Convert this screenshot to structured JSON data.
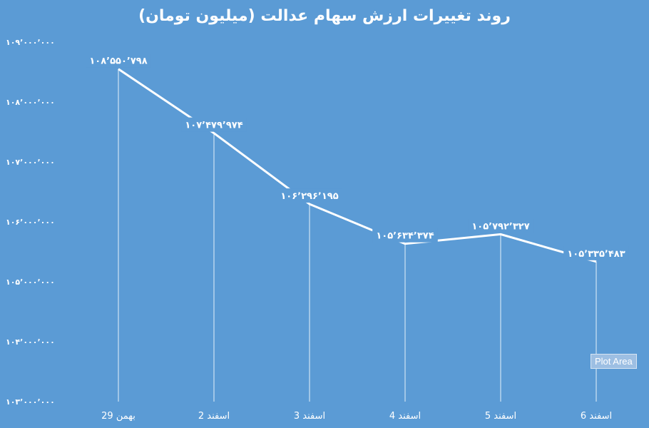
{
  "chart_data": {
    "type": "line",
    "title": "روند تغییرات ارزش سهام عدالت (میلیون تومان)",
    "categories": [
      "29 بهمن",
      "2 اسفند",
      "3 اسفند",
      "4 اسفند",
      "5 اسفند",
      "6 اسفند"
    ],
    "values": [
      108550798,
      107479974,
      106296195,
      105634374,
      105792327,
      105335483
    ],
    "data_labels": [
      "۱۰۸٬۵۵۰٬۷۹۸",
      "۱۰۷٬۴۷۹٬۹۷۴",
      "۱۰۶٬۲۹۶٬۱۹۵",
      "۱۰۵٬۶۳۴٬۳۷۴",
      "۱۰۵٬۷۹۲٬۳۲۷",
      "۱۰۵٬۳۳۵٬۴۸۳"
    ],
    "ylim": [
      103000000,
      109000000
    ],
    "yticks": [
      109000000,
      108000000,
      107000000,
      106000000,
      105000000,
      104000000,
      103000000
    ],
    "ytick_labels": [
      "۱۰۹٬۰۰۰٬۰۰۰",
      "۱۰۸٬۰۰۰٬۰۰۰",
      "۱۰۷٬۰۰۰٬۰۰۰",
      "۱۰۶٬۰۰۰٬۰۰۰",
      "۱۰۵٬۰۰۰٬۰۰۰",
      "۱۰۴٬۰۰۰٬۰۰۰",
      "۱۰۳٬۰۰۰٬۰۰۰"
    ],
    "drop_lines": true,
    "grid": false,
    "colors": {
      "background": "#5b9bd5",
      "line": "#ffffff"
    }
  },
  "tooltip": {
    "text": "Plot Area"
  }
}
